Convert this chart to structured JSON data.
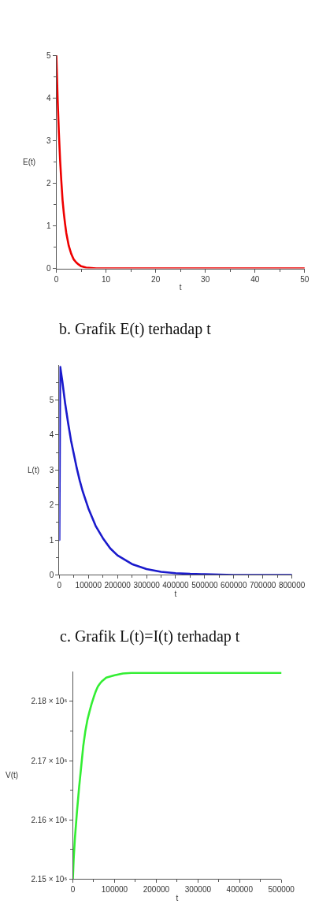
{
  "chart_data": [
    {
      "type": "line",
      "xlabel": "t",
      "ylabel": "E(t)",
      "annotations": [
        "b. Grafik E(t) terhadap t"
      ],
      "x": [
        0,
        0.25,
        0.5,
        0.75,
        1,
        1.25,
        1.5,
        1.75,
        2,
        2.5,
        3,
        3.5,
        4,
        4.5,
        5,
        6,
        7,
        8,
        10,
        20,
        30,
        40,
        50
      ],
      "values": [
        5,
        4.0,
        3.2,
        2.55,
        2.05,
        1.6,
        1.3,
        1.05,
        0.83,
        0.53,
        0.34,
        0.21,
        0.14,
        0.09,
        0.05,
        0.02,
        0.01,
        0,
        0,
        0,
        0,
        0,
        0
      ],
      "color": "#ee0000",
      "xlim": [
        0,
        50
      ],
      "xticks": [
        0,
        {
          "value": 5,
          "label": null
        },
        10,
        {
          "value": 15,
          "label": null
        },
        20,
        {
          "value": 25,
          "label": null
        },
        30,
        {
          "value": 35,
          "label": null
        },
        40,
        {
          "value": 45,
          "label": null
        },
        50
      ],
      "ylim": [
        0,
        5
      ],
      "yticks": [
        0,
        {
          "value": 0.5,
          "label": null
        },
        1,
        {
          "value": 1.5,
          "label": null
        },
        2,
        {
          "value": 2.5,
          "label": null
        },
        3,
        {
          "value": 3.5,
          "label": null
        },
        4,
        {
          "value": 4.5,
          "label": null
        },
        5
      ]
    },
    {
      "type": "line",
      "xlabel": "t",
      "ylabel": "L(t)",
      "annotations": [
        "c. Grafik L(t)=I(t) terhadap t"
      ],
      "x": [
        0,
        3000,
        10000,
        20000,
        30000,
        40000,
        50000,
        60000,
        70000,
        80000,
        90000,
        100000,
        125000,
        150000,
        175000,
        200000,
        250000,
        300000,
        350000,
        400000,
        450000,
        500000,
        600000,
        700000,
        800000
      ],
      "values": [
        1,
        5.95,
        5.55,
        4.9,
        4.35,
        3.85,
        3.45,
        3.05,
        2.7,
        2.4,
        2.15,
        1.9,
        1.4,
        1.05,
        0.76,
        0.56,
        0.31,
        0.17,
        0.09,
        0.05,
        0.03,
        0.02,
        0,
        0,
        0
      ],
      "color": "#1a1acc",
      "xlim": [
        0,
        800000
      ],
      "xticks": [
        0,
        {
          "value": 50000,
          "label": null
        },
        100000,
        {
          "value": 150000,
          "label": null
        },
        200000,
        {
          "value": 250000,
          "label": null
        },
        300000,
        {
          "value": 350000,
          "label": null
        },
        400000,
        {
          "value": 450000,
          "label": null
        },
        500000,
        {
          "value": 550000,
          "label": null
        },
        600000,
        {
          "value": 650000,
          "label": null
        },
        700000,
        {
          "value": 750000,
          "label": null
        },
        800000
      ],
      "ylim": [
        0,
        6
      ],
      "yticks": [
        0,
        {
          "value": 0.5,
          "label": null
        },
        1,
        {
          "value": 1.5,
          "label": null
        },
        2,
        {
          "value": 2.5,
          "label": null
        },
        3,
        {
          "value": 3.5,
          "label": null
        },
        4,
        {
          "value": 4.5,
          "label": null
        },
        5,
        {
          "value": 5.5,
          "label": null
        }
      ]
    },
    {
      "type": "line",
      "xlabel": "t",
      "ylabel": "V(t)",
      "x": [
        0,
        2000,
        5000,
        10000,
        15000,
        20000,
        25000,
        30000,
        35000,
        40000,
        45000,
        50000,
        55000,
        60000,
        65000,
        70000,
        80000,
        90000,
        100000,
        120000,
        140000,
        500000
      ],
      "values": [
        2150000,
        2153500,
        2157000,
        2161500,
        2165500,
        2169000,
        2172500,
        2175000,
        2176900,
        2178300,
        2179600,
        2180700,
        2181700,
        2182500,
        2183000,
        2183400,
        2184000,
        2184200,
        2184400,
        2184700,
        2184800,
        2184800
      ],
      "color": "#33ee33",
      "xlim": [
        0,
        500000
      ],
      "xticks": [
        0,
        {
          "value": 50000,
          "label": null
        },
        100000,
        {
          "value": 150000,
          "label": null
        },
        200000,
        {
          "value": 250000,
          "label": null
        },
        300000,
        {
          "value": 350000,
          "label": null
        },
        400000,
        {
          "value": 450000,
          "label": null
        },
        500000
      ],
      "ylim": [
        2150000,
        2185000
      ],
      "yticks": [
        {
          "value": 2150000,
          "label": "2.15 × 10⁶"
        },
        {
          "value": 2155000,
          "label": null
        },
        {
          "value": 2160000,
          "label": "2.16 × 10⁶"
        },
        {
          "value": 2165000,
          "label": null
        },
        {
          "value": 2170000,
          "label": "2.17 × 10⁶"
        },
        {
          "value": 2175000,
          "label": null
        },
        {
          "value": 2180000,
          "label": "2.18 × 10⁶"
        }
      ]
    }
  ]
}
